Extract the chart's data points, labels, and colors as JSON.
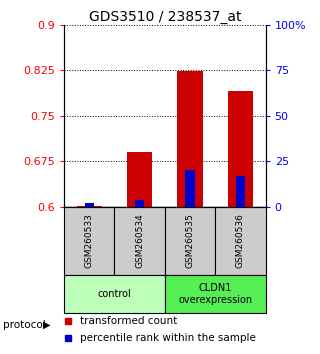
{
  "title": "GDS3510 / 238537_at",
  "samples": [
    "GSM260533",
    "GSM260534",
    "GSM260535",
    "GSM260536"
  ],
  "red_values": [
    0.601,
    0.69,
    0.823,
    0.79
  ],
  "blue_pct": [
    2.0,
    3.5,
    20.0,
    17.0
  ],
  "ylim_left": [
    0.6,
    0.9
  ],
  "ylim_right": [
    0,
    100
  ],
  "yticks_left": [
    0.6,
    0.675,
    0.75,
    0.825,
    0.9
  ],
  "yticks_right": [
    0,
    25,
    50,
    75,
    100
  ],
  "ytick_labels_right": [
    "0",
    "25",
    "50",
    "75",
    "100%"
  ],
  "groups": [
    {
      "label": "control",
      "samples": [
        0,
        1
      ],
      "color": "#bbffbb"
    },
    {
      "label": "CLDN1\noverexpression",
      "samples": [
        2,
        3
      ],
      "color": "#55ee55"
    }
  ],
  "protocol_label": "protocol",
  "legend_red": "transformed count",
  "legend_blue": "percentile rank within the sample",
  "bar_width": 0.5,
  "blue_bar_width": 0.18,
  "red_color": "#cc0000",
  "blue_color": "#0000cc",
  "sample_box_color": "#cccccc",
  "title_fontsize": 10,
  "tick_fontsize": 8,
  "legend_fontsize": 7.5
}
